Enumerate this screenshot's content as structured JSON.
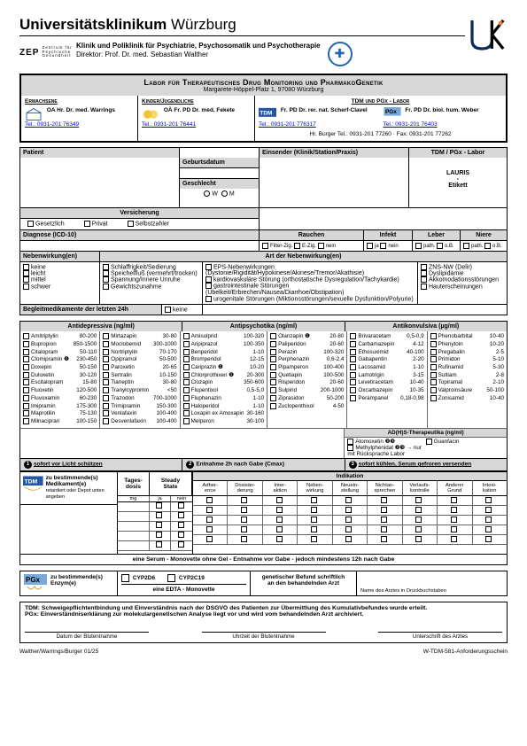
{
  "header": {
    "univ": "Universitätsklinikum",
    "city": "Würzburg",
    "zep": "ZEP",
    "zep_sub": "Zentrum für\nPsychische\nGesundheit",
    "dept": "Klinik und Poliklinik für Psychiatrie, Psychosomatik und Psychotherapie",
    "director": "Direktor: Prof. Dr. med. Sebastian Walther"
  },
  "labor": {
    "title": "Labor für Therapeutisches Drug Monitoring und PharmakoGenetik",
    "addr": "Margarete-Höppel-Platz 1, 97080 Würzburg",
    "cols": [
      {
        "head": "Erwachsene",
        "name": "OA Hr. Dr. med. Warrings",
        "tel": "Tel.: 0931-201 76349"
      },
      {
        "head": "Kinder/Jugendliche",
        "name": "OÄ Fr. PD Dr. med. Fekete",
        "tel": "Tel.: 0931-201 76441"
      },
      {
        "head": "TDM und PGx - Labor",
        "name1": "Fr. PD Dr. rer. nat. Scherf-Clavel",
        "tel1": "Tel.: 0931-201 776317",
        "name2": "Fr. PD Dr. biol. hum. Weber",
        "tel2": "Tel.: 0931-201 76403",
        "burger": "Hr. Burger   Tel.: 0931-201 77260 · Fax: 0931-201 77262"
      }
    ]
  },
  "sections": {
    "patient": "Patient",
    "einsender": "Einsender (Klinik/Station/Praxis)",
    "tdmpgx": "TDM / PGx - Labor",
    "lauris": "LAURIS\n-\nEtikett",
    "geb": "Geburtsdatum",
    "geschl": "Geschlecht",
    "w": "W",
    "m": "M",
    "versicherung": "Versicherung",
    "gesetzlich": "Gesetzlich",
    "privat": "Privat",
    "selbst": "Selbstzahler",
    "diagnose": "Diagnose (ICD-10)",
    "rauchen": "Rauchen",
    "infekt": "Infekt",
    "leber": "Leber",
    "niere": "Niere",
    "filter": "Filter-Zig.",
    "ezig": "E-Zig.",
    "nein": "nein",
    "ja": "ja",
    "path": "path.",
    "ob": "o.B.",
    "neben_h": "Nebenwirkung(en)",
    "art_h": "Art der Nebenwirkung(en)",
    "neben": [
      "keine",
      "leicht",
      "mittel",
      "schwer"
    ],
    "arten": [
      [
        "Schlaffrigkeit/Sedierung",
        "Speichelfluß (vermehrt/trocken)",
        "Spannung/Innere Unruhe",
        "Gewichtszunahme"
      ],
      [
        "EPS-Nebenwirkungen (Dystonie/Rigidität/Hypokinese/Akinese/Tremor/Akathisie)",
        "kardiovaskuläre Störung (orthostatische Dysregulation/Tachykardie)",
        "gastrointestinale Störungen (Übelkeit/Erbrechen/Nausea/Diarrhoe/Obstipation)",
        "urogenitale Störungen (Miktionsstörungen/sexuelle Dysfunktion/Polyurie)"
      ],
      [
        "ZNS-NW (Delir)",
        "Dyslipidämie",
        "Akkomodationsstörungen",
        "Hauterscheinungen"
      ]
    ],
    "begleit": "Begleitmedikamente der letzten 24h",
    "begleit_keine": "keine"
  },
  "meds": {
    "cat1": "Antidepressiva (ng/ml)",
    "cat2": "Antipsychotika (ng/ml)",
    "cat3": "Antikonvulsiva (µg/ml)",
    "c1a": [
      [
        "Amitriptylin",
        "80-200"
      ],
      [
        "Bupropion",
        "850-1500"
      ],
      [
        "Citalopram",
        "50-110"
      ],
      [
        "Clomipramin ❶",
        "230-450"
      ],
      [
        "Doxepin",
        "50-150"
      ],
      [
        "Duloxetin",
        "30-120"
      ],
      [
        "Escitalopram",
        "15-80"
      ],
      [
        "Fluoxetin",
        "120-500"
      ],
      [
        "Fluvoxamin",
        "60-230"
      ],
      [
        "Imipramin",
        "175-300"
      ],
      [
        "Maprotilin",
        "75-130"
      ],
      [
        "Milnacipran",
        "100-150"
      ]
    ],
    "c1b": [
      [
        "Mirtazapin",
        "30-80"
      ],
      [
        "Moclobemid",
        "300-1000"
      ],
      [
        "Nortriptylin",
        "70-170"
      ],
      [
        "Opipramol",
        "50-500"
      ],
      [
        "Paroxetin",
        "20-65"
      ],
      [
        "Sertralin",
        "10-150"
      ],
      [
        "Tianeptin",
        "30-80"
      ],
      [
        "Tranylcypromin",
        "<50"
      ],
      [
        "Trazodon",
        "700-1000"
      ],
      [
        "Trimipramin",
        "150-300"
      ],
      [
        "Venlafaxin",
        "100-400"
      ],
      [
        "Desvenlafaxin",
        "100-400"
      ]
    ],
    "c2a": [
      [
        "Amisulprid",
        "100-320"
      ],
      [
        "Aripiprazol",
        "100-350"
      ],
      [
        "Benperidol",
        "1-10"
      ],
      [
        "Bromperidol",
        "12-15"
      ],
      [
        "Cariprazin ❶",
        "10-20"
      ],
      [
        "Chlorprothixen ❶",
        " 20-300"
      ],
      [
        "Clozapin",
        "350-600"
      ],
      [
        "Flupentixol",
        "0,5-5,0"
      ],
      [
        "Fluphenazin",
        "1-10"
      ],
      [
        "Haloperidol",
        "1-10"
      ],
      [
        "Loxapin ex Amoxapin",
        "30-160"
      ],
      [
        "Melperon",
        "30-100"
      ]
    ],
    "c2b": [
      [
        "Olanzapin ❶",
        "20-80"
      ],
      [
        "Paliperidon",
        "20-60"
      ],
      [
        "Perazin",
        "100-320"
      ],
      [
        "Perphenazin",
        "0,6-2,4"
      ],
      [
        "Pipamperon",
        "100-400"
      ],
      [
        "Quetiapin",
        "100-500"
      ],
      [
        "Risperidon",
        "20-60"
      ],
      [
        "Sulpirid",
        "200-1000"
      ],
      [
        "Ziprasidon",
        "50-200"
      ],
      [
        "Zuclopenthixol",
        "4-50"
      ]
    ],
    "c3a": [
      [
        "Brivaracetam",
        "0,5-0,9"
      ],
      [
        "Carbamazepin",
        "4-12"
      ],
      [
        "Ethosuximid",
        "40-100"
      ],
      [
        "Gabapentin",
        "2-20"
      ],
      [
        "Lacosamid",
        "1-10"
      ],
      [
        "Lamotrigin",
        "3-15"
      ],
      [
        "Levetiracetam",
        "10-40"
      ],
      [
        "Oxcarbazepin",
        "10-35"
      ],
      [
        "Perampanel",
        "0,18-0,98"
      ]
    ],
    "c3b": [
      [
        "Phenobarbital",
        "10-40"
      ],
      [
        "Phenytoin",
        "10-20"
      ],
      [
        "Pregabalin",
        "2-5"
      ],
      [
        "Primidon",
        "5-10"
      ],
      [
        "Rufinamid",
        "5-30"
      ],
      [
        "Sultiam",
        "2-8"
      ],
      [
        "Topiramat",
        "2-10"
      ],
      [
        "Valproinsäure",
        "50-100"
      ],
      [
        "Zonisamid",
        "10-40"
      ]
    ],
    "adhs_head": "AD(H)S-Therapeutika (ng/ml)",
    "adhs": [
      [
        "Atomoxetin ❷❸",
        "Guanfacin"
      ],
      [
        "Methylphenidat ❷❸ → nur mit Rücksprache Labor",
        ""
      ]
    ]
  },
  "instr": {
    "i1": "sofort vor Licht schützen",
    "i2": "Entnahme 2h nach Gabe (Cmax)",
    "i3": "sofort kühlen, Serum gefroren versenden"
  },
  "tdm": {
    "medik": "zu bestimmende(s)\nMedikament(e)",
    "hint": "retardiert oder Depot unten angeben",
    "dose": "Tages-\ndosis",
    "mg": "mg",
    "steady": "Steady\nState",
    "ja": "ja",
    "nein": "nein",
    "indik": "Indikation",
    "indik_cols": [
      "Adher-\nence",
      "Dosisän-\nderung",
      "Inter-\naktion",
      "Neben-\nwirkung",
      "Neuein-\nstellung",
      "Nichtan-\nsprechen",
      "Verlaufs-\nkontrolle",
      "Anderer\nGrund",
      "Intoxi-\nkation"
    ]
  },
  "serum": "eine Serum - Monovette ohne Gel - Entnahme vor Gabe - jedoch mindestens 12h nach Gabe",
  "pgx": {
    "enzym": "zu bestimmende(s)\nEnzym(e)",
    "cyp2d6": "CYP2D6",
    "cyp2c19": "CYP2C19",
    "edta": "eine EDTA - Monovette",
    "befund": "genetischer Befund schriftlich\nan den behandelnden Arzt",
    "arzt": "Name des Arztes in Druckbuchstaben"
  },
  "footer": {
    "tdm_note": "TDM:   Schweigepflichtentbindung und Einverständnis nach der DSGVO des Patienten zur Übermittlung des Kumulativbefundes wurde erteilt.",
    "pgx_note": "PGx:   Einverständniserklärung zur molekulargenetischen Analyse liegt vor und wird vom behandelnden Arzt archiviert.",
    "sig1": "Datum der Blutentnahme",
    "sig2": "Uhrzeit der Blutentnahme",
    "sig3": "Unterschrift des Arztes",
    "left": "Walther/Warrings/Burger 01/25",
    "right": "W-TDM-581-Anforderungsschein"
  }
}
